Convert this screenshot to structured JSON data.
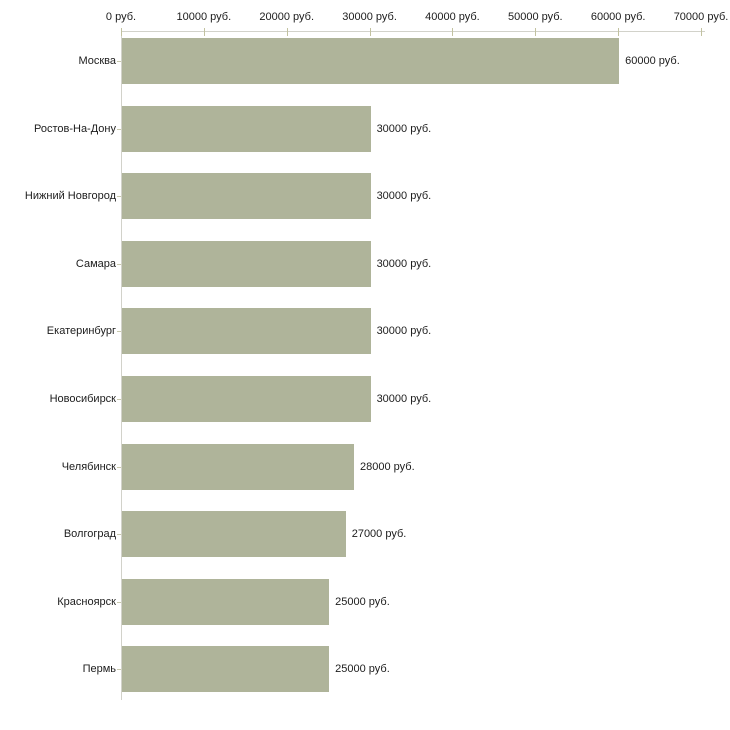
{
  "chart_data": {
    "type": "bar",
    "orientation": "horizontal",
    "title": "",
    "xlabel": "",
    "ylabel": "",
    "grid": "off",
    "legend": "none",
    "xlim": [
      0,
      70000
    ],
    "categories": [
      "Москва",
      "Ростов-На-Дону",
      "Нижний Новгород",
      "Самара",
      "Екатеринбург",
      "Новосибирск",
      "Челябинск",
      "Волгоград",
      "Красноярск",
      "Пермь"
    ],
    "values": [
      60000,
      30000,
      30000,
      30000,
      30000,
      30000,
      28000,
      27000,
      25000,
      25000
    ],
    "value_labels": [
      "60000 руб.",
      "30000 руб.",
      "30000 руб.",
      "30000 руб.",
      "30000 руб.",
      "30000 руб.",
      "28000 руб.",
      "27000 руб.",
      "25000 руб.",
      "25000 руб."
    ],
    "x_ticks": [
      0,
      10000,
      20000,
      30000,
      40000,
      50000,
      60000,
      70000
    ],
    "x_tick_labels": [
      "0 руб.",
      "10000 руб.",
      "20000 руб.",
      "30000 руб.",
      "40000 руб.",
      "50000 руб.",
      "60000 руб.",
      "70000 руб."
    ],
    "colors": {
      "bar": "#afb49a",
      "axis_line": "#d2d2ca",
      "tick": "#c2c2a0",
      "category_tick": "#c9c9ae",
      "text": "#1c1c1c",
      "background": "#ffffff"
    }
  }
}
